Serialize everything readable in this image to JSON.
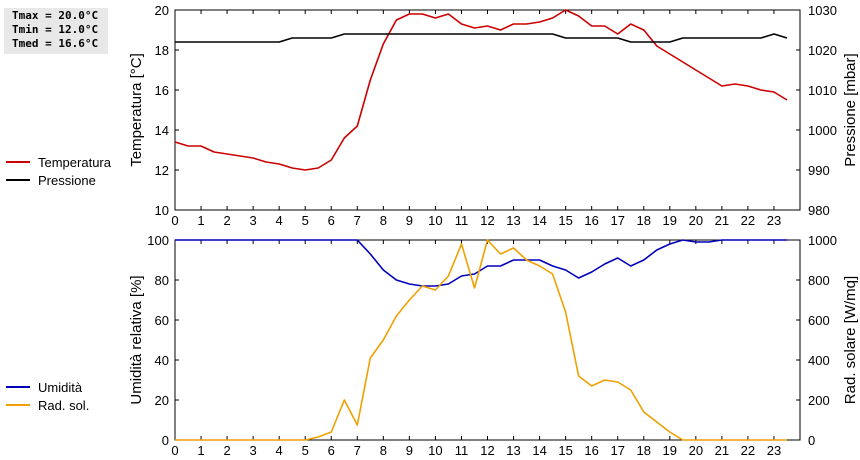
{
  "stats": {
    "tmax": "Tmax = 20.0°C",
    "tmin": "Tmin = 12.0°C",
    "tmed": "Tmed = 16.6°C"
  },
  "chart_data": [
    {
      "type": "line",
      "xlabel": "",
      "xlim": [
        0,
        24
      ],
      "xticks": [
        "0",
        "1",
        "2",
        "3",
        "4",
        "5",
        "6",
        "7",
        "8",
        "9",
        "10",
        "11",
        "12",
        "13",
        "14",
        "15",
        "16",
        "17",
        "18",
        "19",
        "20",
        "21",
        "22",
        "23"
      ],
      "ylabel": "Temperatura [°C]",
      "ylim": [
        10,
        20
      ],
      "yticks": [
        10,
        12,
        14,
        16,
        18,
        20
      ],
      "y2label": "Pressione [mbar]",
      "y2lim": [
        980,
        1030
      ],
      "y2ticks": [
        980,
        990,
        1000,
        1010,
        1020,
        1030
      ],
      "grid": false,
      "legend_position": "left",
      "series": [
        {
          "name": "Temperatura",
          "axis": "left",
          "color": "#cc0000",
          "x": [
            0,
            0.5,
            1,
            1.5,
            2,
            2.5,
            3,
            3.5,
            4,
            4.5,
            5,
            5.5,
            6,
            6.5,
            7,
            7.5,
            8,
            8.5,
            9,
            9.5,
            10,
            10.5,
            11,
            11.5,
            12,
            12.5,
            13,
            13.5,
            14,
            14.5,
            15,
            15.5,
            16,
            16.5,
            17,
            17.5,
            18,
            18.5,
            19,
            19.5,
            20,
            20.5,
            21,
            21.5,
            22,
            22.5,
            23,
            23.5
          ],
          "y": [
            13.4,
            13.2,
            13.2,
            12.9,
            12.8,
            12.7,
            12.6,
            12.4,
            12.3,
            12.1,
            12.0,
            12.1,
            12.5,
            13.6,
            14.2,
            16.5,
            18.3,
            19.5,
            19.8,
            19.8,
            19.6,
            19.8,
            19.3,
            19.1,
            19.2,
            19.0,
            19.3,
            19.3,
            19.4,
            19.6,
            20.0,
            19.7,
            19.2,
            19.2,
            18.8,
            19.3,
            19.0,
            18.2,
            17.8,
            17.4,
            17.0,
            16.6,
            16.2,
            16.3,
            16.2,
            16.0,
            15.9,
            15.5
          ]
        },
        {
          "name": "Pressione",
          "axis": "right",
          "color": "#000000",
          "x": [
            0,
            0.5,
            1,
            1.5,
            2,
            2.5,
            3,
            3.5,
            4,
            4.5,
            5,
            5.5,
            6,
            6.5,
            7,
            7.5,
            8,
            8.5,
            9,
            9.5,
            10,
            10.5,
            11,
            11.5,
            12,
            12.5,
            13,
            13.5,
            14,
            14.5,
            15,
            15.5,
            16,
            16.5,
            17,
            17.5,
            18,
            18.5,
            19,
            19.5,
            20,
            20.5,
            21,
            21.5,
            22,
            22.5,
            23,
            23.5
          ],
          "y": [
            1022,
            1022,
            1022,
            1022,
            1022,
            1022,
            1022,
            1022,
            1022,
            1023,
            1023,
            1023,
            1023,
            1024,
            1024,
            1024,
            1024,
            1024,
            1024,
            1024,
            1024,
            1024,
            1024,
            1024,
            1024,
            1024,
            1024,
            1024,
            1024,
            1024,
            1023,
            1023,
            1023,
            1023,
            1023,
            1022,
            1022,
            1022,
            1022,
            1023,
            1023,
            1023,
            1023,
            1023,
            1023,
            1023,
            1024,
            1023
          ]
        }
      ]
    },
    {
      "type": "line",
      "xlabel": "",
      "xlim": [
        0,
        24
      ],
      "xticks": [
        "0",
        "1",
        "2",
        "3",
        "4",
        "5",
        "6",
        "7",
        "8",
        "9",
        "10",
        "11",
        "12",
        "13",
        "14",
        "15",
        "16",
        "17",
        "18",
        "19",
        "20",
        "21",
        "22",
        "23"
      ],
      "ylabel": "Umidità relativa [%]",
      "ylim": [
        0,
        100
      ],
      "yticks": [
        0,
        20,
        40,
        60,
        80,
        100
      ],
      "y2label": "Rad. solare [W/mq]",
      "y2lim": [
        0,
        1000
      ],
      "y2ticks": [
        0,
        200,
        400,
        600,
        800,
        1000
      ],
      "grid": false,
      "legend_position": "left",
      "series": [
        {
          "name": "Umidità",
          "axis": "left",
          "color": "#0000bb",
          "x": [
            0,
            0.5,
            1,
            1.5,
            2,
            2.5,
            3,
            3.5,
            4,
            4.5,
            5,
            5.5,
            6,
            6.5,
            7,
            7.5,
            8,
            8.5,
            9,
            9.5,
            10,
            10.5,
            11,
            11.5,
            12,
            12.5,
            13,
            13.5,
            14,
            14.5,
            15,
            15.5,
            16,
            16.5,
            17,
            17.5,
            18,
            18.5,
            19,
            19.5,
            20,
            20.5,
            21,
            21.5,
            22,
            22.5,
            23,
            23.5
          ],
          "y": [
            100,
            100,
            100,
            100,
            100,
            100,
            100,
            100,
            100,
            100,
            100,
            100,
            100,
            100,
            100,
            93,
            85,
            80,
            78,
            77,
            77,
            78,
            82,
            83,
            87,
            87,
            90,
            90,
            90,
            87,
            85,
            81,
            84,
            88,
            91,
            87,
            90,
            95,
            98,
            100,
            99,
            99,
            100,
            100,
            100,
            100,
            100,
            100
          ]
        },
        {
          "name": "Rad. sol.",
          "axis": "right",
          "color": "#f0a000",
          "x": [
            0,
            0.5,
            1,
            1.5,
            2,
            2.5,
            3,
            3.5,
            4,
            4.5,
            5,
            5.5,
            6,
            6.5,
            7,
            7.5,
            8,
            8.5,
            9,
            9.5,
            10,
            10.5,
            11,
            11.5,
            12,
            12.5,
            13,
            13.5,
            14,
            14.5,
            15,
            15.5,
            16,
            16.5,
            17,
            17.5,
            18,
            18.5,
            19,
            19.5,
            20,
            20.5,
            21,
            21.5,
            22,
            22.5,
            23,
            23.5
          ],
          "y": [
            0,
            0,
            0,
            0,
            0,
            0,
            0,
            0,
            0,
            0,
            0,
            15,
            40,
            200,
            75,
            410,
            500,
            620,
            700,
            770,
            750,
            820,
            980,
            760,
            1000,
            930,
            960,
            900,
            870,
            830,
            640,
            320,
            270,
            300,
            290,
            250,
            140,
            90,
            40,
            0,
            0,
            0,
            0,
            0,
            0,
            0,
            0,
            0
          ]
        }
      ]
    }
  ]
}
